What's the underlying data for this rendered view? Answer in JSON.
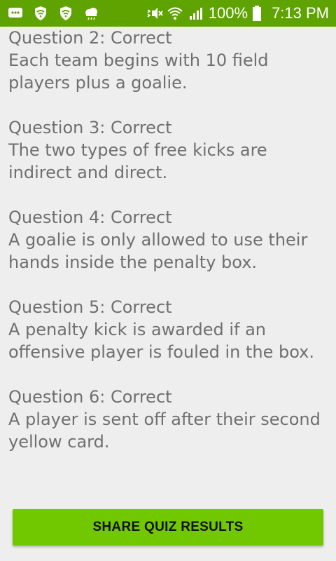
{
  "status_bar": {
    "battery_percent": "100%",
    "time": "7:13 PM",
    "icons": [
      "chat-icon",
      "shield-wifi-icon",
      "shield-wifi-icon-2",
      "weather-cloud-icon",
      "bluetooth-vibrate-mute-icon",
      "wifi-icon",
      "cell-signal-icon",
      "battery-icon"
    ]
  },
  "results": [
    {
      "title": "Question 2: Correct",
      "answer": "Each team begins with 10 field players plus a goalie."
    },
    {
      "title": "Question 3: Correct",
      "answer": "The two types of free kicks are indirect and direct."
    },
    {
      "title": "Question 4: Correct",
      "answer": "A goalie is only allowed to use their hands inside the penalty box."
    },
    {
      "title": "Question 5: Correct",
      "answer": "A penalty kick is awarded if an offensive player is fouled in the box."
    },
    {
      "title": "Question 6: Correct",
      "answer": "A player is sent off after their second yellow card."
    }
  ],
  "share_button": {
    "label": "SHARE QUIZ RESULTS"
  },
  "colors": {
    "status_bar_bg": "#5fa300",
    "button_bg": "#72c800",
    "text": "#6f6f6f",
    "page_bg": "#eeeeee"
  }
}
